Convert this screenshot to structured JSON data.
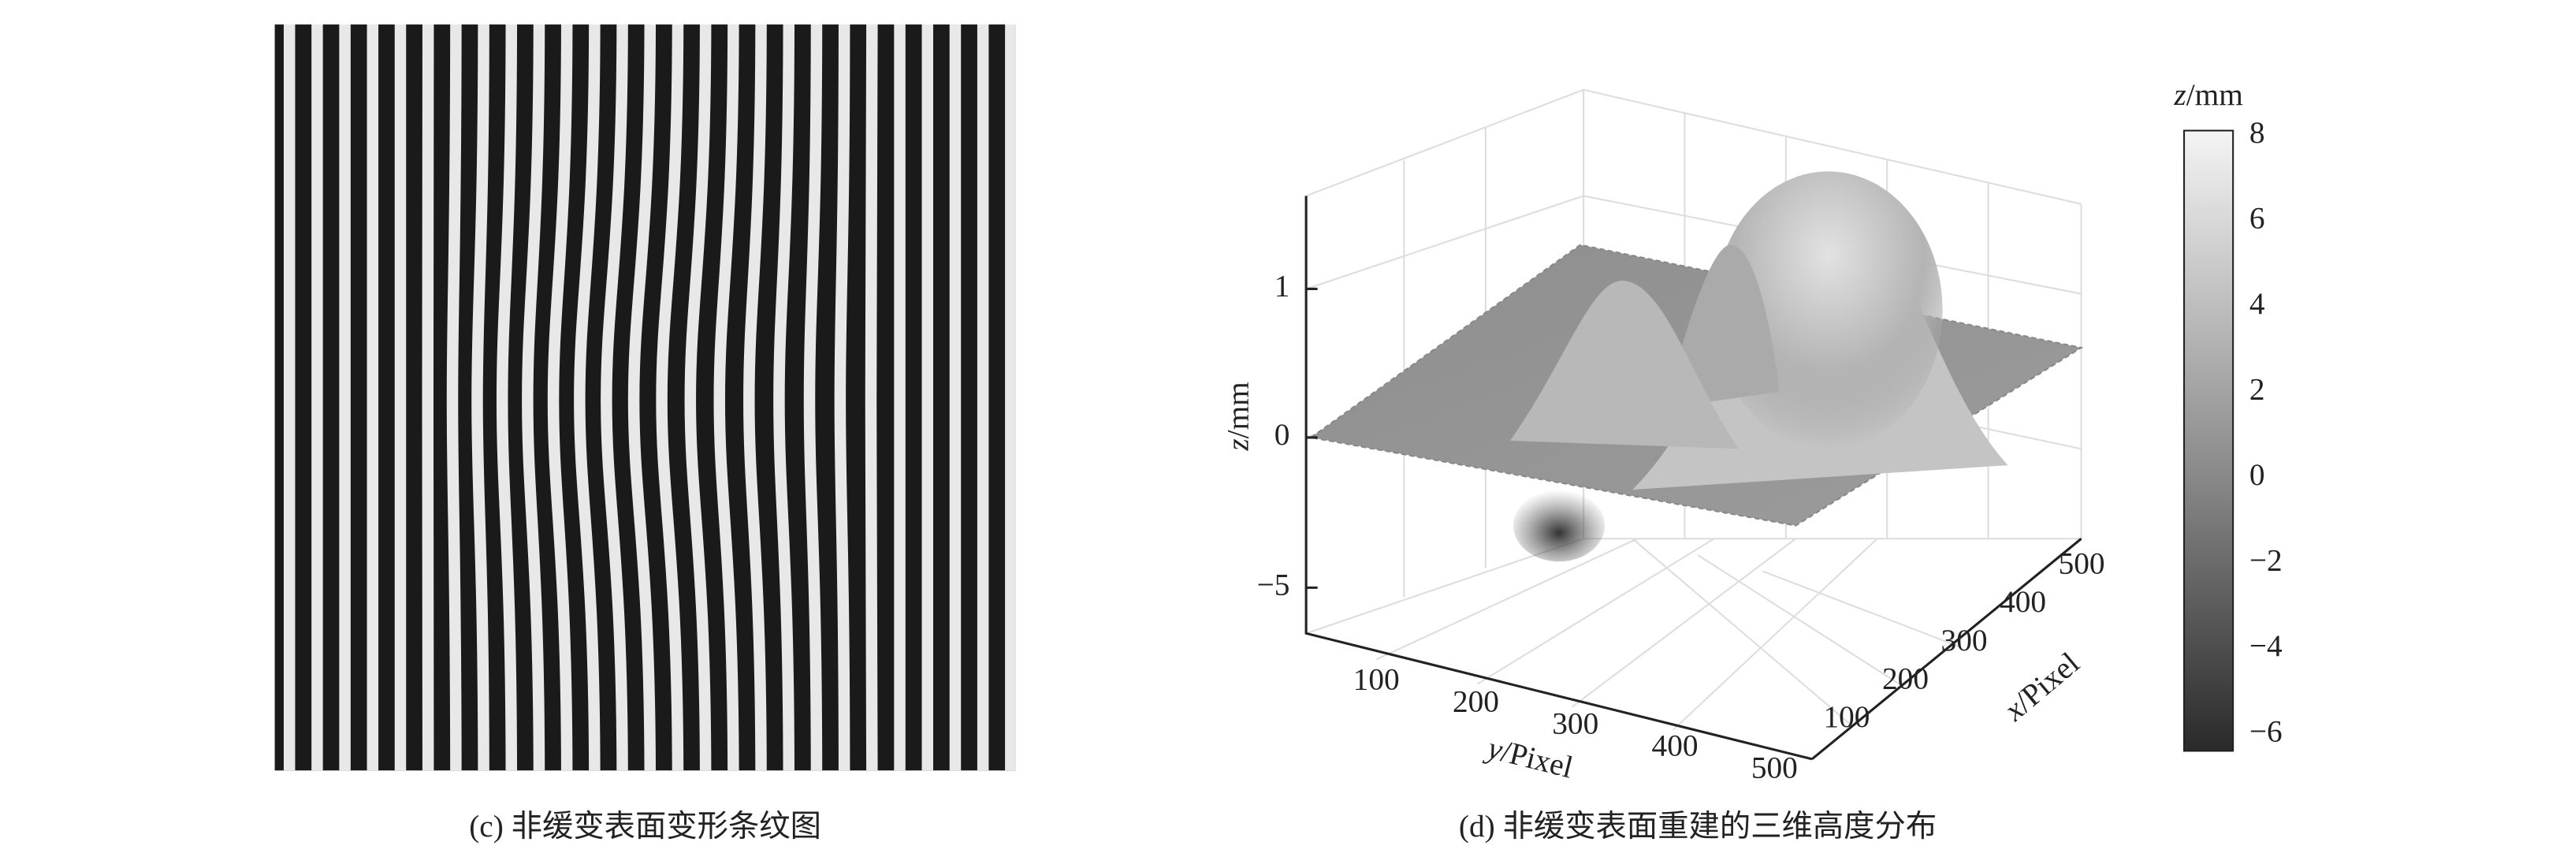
{
  "panel_c": {
    "caption": "(c) 非缓变表面变形条纹图"
  },
  "panel_d": {
    "caption": "(d) 非缓变表面重建的三维高度分布",
    "z_axis": {
      "label_var": "z",
      "label_unit": "/mm",
      "ticks": [
        "1",
        "0",
        "−5"
      ]
    },
    "y_axis": {
      "label_var": "y",
      "label_unit": "/Pixel",
      "ticks": [
        "100",
        "200",
        "300",
        "400",
        "500"
      ]
    },
    "x_axis": {
      "label_var": "x",
      "label_unit": "/Pixel",
      "ticks": [
        "100",
        "200",
        "300",
        "400",
        "500"
      ]
    },
    "colorbar": {
      "label_var": "z",
      "label_unit": "/mm",
      "ticks": [
        "8",
        "6",
        "4",
        "2",
        "0",
        "−2",
        "−4",
        "−6"
      ]
    }
  }
}
